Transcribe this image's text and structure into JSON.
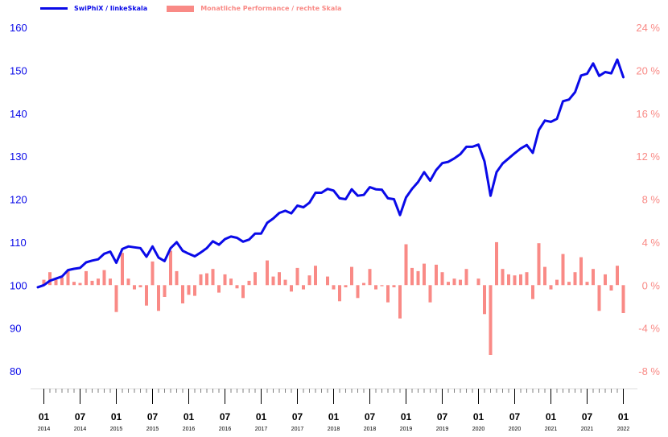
{
  "colors": {
    "primary": "#0a0ae8",
    "secondary": "#f98a86",
    "axis": "#000000"
  },
  "legend": {
    "series1": "SwiPhiX / linkeSkala",
    "series2": "Monatliche Performance / rechte Skala"
  },
  "chart_data": {
    "type": "line+bar",
    "x": [
      "2013-12",
      "2014-01",
      "2014-02",
      "2014-03",
      "2014-04",
      "2014-05",
      "2014-06",
      "2014-07",
      "2014-08",
      "2014-09",
      "2014-10",
      "2014-11",
      "2014-12",
      "2015-01",
      "2015-02",
      "2015-03",
      "2015-04",
      "2015-05",
      "2015-06",
      "2015-07",
      "2015-08",
      "2015-09",
      "2015-10",
      "2015-11",
      "2015-12",
      "2016-01",
      "2016-02",
      "2016-03",
      "2016-04",
      "2016-05",
      "2016-06",
      "2016-07",
      "2016-08",
      "2016-09",
      "2016-10",
      "2016-11",
      "2016-12",
      "2017-01",
      "2017-02",
      "2017-03",
      "2017-04",
      "2017-05",
      "2017-06",
      "2017-07",
      "2017-08",
      "2017-09",
      "2017-10",
      "2017-11",
      "2017-12",
      "2018-01",
      "2018-02",
      "2018-03",
      "2018-04",
      "2018-05",
      "2018-06",
      "2018-07",
      "2018-08",
      "2018-09",
      "2018-10",
      "2018-11",
      "2018-12",
      "2019-01",
      "2019-02",
      "2019-03",
      "2019-04",
      "2019-05",
      "2019-06",
      "2019-07",
      "2019-08",
      "2019-09",
      "2019-10",
      "2019-11",
      "2019-12",
      "2020-01",
      "2020-02",
      "2020-03",
      "2020-04",
      "2020-05",
      "2020-06",
      "2020-07",
      "2020-08",
      "2020-09",
      "2020-10",
      "2020-11",
      "2020-12",
      "2021-01",
      "2021-02",
      "2021-03",
      "2021-04",
      "2021-05",
      "2021-06",
      "2021-07",
      "2021-08",
      "2021-09",
      "2021-10",
      "2021-11",
      "2021-12",
      "2022-01"
    ],
    "x_tick_labels": [
      {
        "month": "01",
        "year": "2014",
        "at": "2014-01"
      },
      {
        "month": "07",
        "year": "2014",
        "at": "2014-07"
      },
      {
        "month": "01",
        "year": "2015",
        "at": "2015-01"
      },
      {
        "month": "07",
        "year": "2015",
        "at": "2015-07"
      },
      {
        "month": "01",
        "year": "2016",
        "at": "2016-01"
      },
      {
        "month": "07",
        "year": "2016",
        "at": "2016-07"
      },
      {
        "month": "01",
        "year": "2017",
        "at": "2017-01"
      },
      {
        "month": "07",
        "year": "2017",
        "at": "2017-07"
      },
      {
        "month": "01",
        "year": "2018",
        "at": "2018-01"
      },
      {
        "month": "07",
        "year": "2018",
        "at": "2018-07"
      },
      {
        "month": "01",
        "year": "2019",
        "at": "2019-01"
      },
      {
        "month": "07",
        "year": "2019",
        "at": "2019-07"
      },
      {
        "month": "01",
        "year": "2020",
        "at": "2020-01"
      },
      {
        "month": "07",
        "year": "2020",
        "at": "2020-07"
      },
      {
        "month": "01",
        "year": "2021",
        "at": "2021-01"
      },
      {
        "month": "07",
        "year": "2021",
        "at": "2021-07"
      },
      {
        "month": "01",
        "year": "2022",
        "at": "2022-01"
      }
    ],
    "series": [
      {
        "name": "SwiPhiX / linkeSkala",
        "type": "line",
        "axis": "left",
        "values": [
          99.5,
          100,
          101,
          101.5,
          102,
          103.5,
          103.8,
          104,
          105.3,
          105.7,
          106,
          107.3,
          107.8,
          105.2,
          108.4,
          109,
          108.8,
          108.6,
          106.6,
          109,
          106.4,
          105.6,
          108.6,
          110,
          108,
          107.3,
          106.7,
          107.6,
          108.6,
          110.2,
          109.4,
          110.7,
          111.3,
          111,
          110.1,
          110.6,
          112,
          112,
          114.5,
          115.5,
          116.8,
          117.3,
          116.7,
          118.5,
          118.1,
          119.2,
          121.5,
          121.5,
          122.4,
          122,
          120.2,
          120,
          122.3,
          120.8,
          121,
          122.8,
          122.3,
          122.2,
          120.2,
          120,
          116.3,
          120.4,
          122.4,
          124,
          126.3,
          124.3,
          126.8,
          128.4,
          128.7,
          129.5,
          130.5,
          132.2,
          132.2,
          132.7,
          128.8,
          120.8,
          126.3,
          128.3,
          129.5,
          130.7,
          131.8,
          132.6,
          130.8,
          136.1,
          138.3,
          138,
          138.7,
          142.8,
          143.2,
          144.9,
          148.8,
          149.2,
          151.6,
          148.7,
          149.6,
          149.3,
          152.5,
          148.4
        ]
      },
      {
        "name": "Monatliche Performance / rechte Skala",
        "type": "bar",
        "axis": "right",
        "values": [
          null,
          0.5,
          1.2,
          0.5,
          0.7,
          1.4,
          0.3,
          0.2,
          1.3,
          0.4,
          0.6,
          1.4,
          0.6,
          -2.5,
          3,
          0.6,
          -0.4,
          -0.2,
          -1.9,
          2.2,
          -2.4,
          -1.1,
          3.2,
          1.3,
          -1.7,
          -0.9,
          -1,
          1,
          1.1,
          1.5,
          -0.7,
          1,
          0.6,
          -0.3,
          -1.2,
          0.4,
          1.2,
          0,
          2.3,
          0.8,
          1.2,
          0.5,
          -0.6,
          1.6,
          -0.4,
          0.9,
          1.8,
          0,
          0.8,
          -0.4,
          -1.5,
          -0.2,
          1.7,
          -1.2,
          0.2,
          1.5,
          -0.4,
          -0.1,
          -1.6,
          -0.2,
          -3.1,
          3.8,
          1.6,
          1.3,
          2,
          -1.6,
          1.9,
          1.2,
          0.3,
          0.6,
          0.5,
          1.5,
          0,
          0.6,
          -2.7,
          -6.5,
          4,
          1.5,
          1,
          0.9,
          1,
          1.2,
          -1.3,
          3.9,
          1.7,
          -0.4,
          0.5,
          2.9,
          0.3,
          1.2,
          2.6,
          0.3,
          1.5,
          -2.4,
          1,
          -0.5,
          1.8,
          -2.6
        ]
      }
    ],
    "y_left": {
      "min": 80,
      "max": 160,
      "ticks": [
        80,
        90,
        100,
        110,
        120,
        130,
        140,
        150,
        160
      ]
    },
    "y_right": {
      "min": -8,
      "max": 24,
      "unit": "%",
      "ticks": [
        -8,
        -4,
        0,
        4,
        8,
        12,
        16,
        20,
        24
      ],
      "tick_labels": [
        "-8 %",
        "-4 %",
        "0 %",
        "4 %",
        "8 %",
        "12 %",
        "16 %",
        "20 %",
        "24 %"
      ]
    },
    "grid": false,
    "legend_position": "top-left"
  }
}
